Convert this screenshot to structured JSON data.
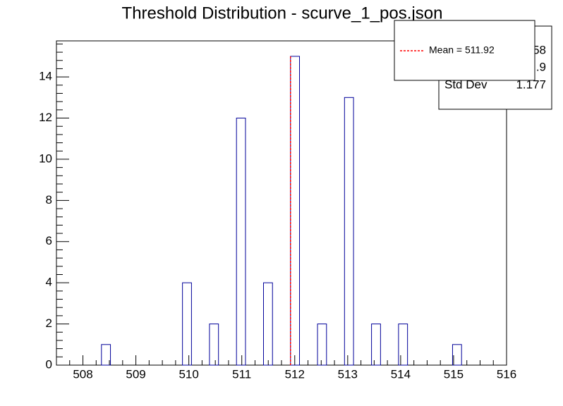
{
  "chart_data": {
    "type": "histogram",
    "title": "Threshold Distribution - scurve_1_pos.json",
    "bins": [
      507.5,
      507.67,
      507.84,
      508.01,
      508.18,
      508.35,
      508.52,
      508.69,
      508.86,
      509.03,
      509.2,
      509.37,
      509.54,
      509.71,
      509.88,
      510.05,
      510.22,
      510.39,
      510.56,
      510.73,
      510.9,
      511.07,
      511.24,
      511.41,
      511.58,
      511.75,
      511.92,
      512.09,
      512.26,
      512.43,
      512.6,
      512.77,
      512.94,
      513.11,
      513.28,
      513.45,
      513.62,
      513.79,
      513.96,
      514.13,
      514.3,
      514.47,
      514.64,
      514.81,
      514.98,
      515.15,
      515.32,
      515.49,
      515.66,
      515.83,
      516
    ],
    "values": [
      0,
      0,
      0,
      0,
      0,
      1,
      0,
      0,
      0,
      0,
      0,
      0,
      0,
      0,
      4,
      0,
      0,
      2,
      0,
      0,
      12,
      0,
      0,
      4,
      0,
      0,
      15,
      0,
      0,
      2,
      0,
      0,
      13,
      0,
      0,
      2,
      0,
      0,
      2,
      0,
      0,
      0,
      0,
      0,
      1,
      0,
      0,
      0,
      0,
      0
    ],
    "color": "#000099",
    "xlim": [
      507.5,
      516
    ],
    "xticks": [
      508,
      509,
      510,
      511,
      512,
      513,
      514,
      515,
      516
    ],
    "ylim": [
      0,
      15.75
    ],
    "yticks": [
      0,
      2,
      4,
      6,
      8,
      10,
      12,
      14
    ],
    "mean_line": {
      "name": "Mean = 511.92",
      "value": 511.92,
      "color": "#ff0000"
    },
    "stats": {
      "entries": 58,
      "mean": ".9",
      "std_dev_label": "Std Dev",
      "std_dev": 1.177
    }
  }
}
